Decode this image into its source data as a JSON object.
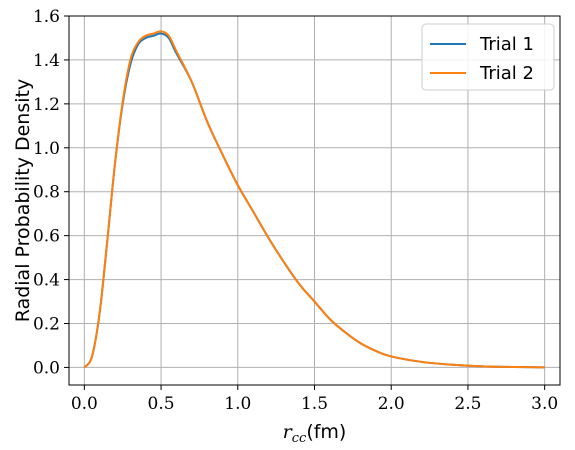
{
  "chart_data": {
    "type": "line",
    "title": "",
    "xlabel": "r_cc(fm)",
    "xlabel_parts": {
      "main": "r",
      "sub": "cc",
      "unit": "(fm)"
    },
    "ylabel": "Radial Probability Density",
    "xlim": [
      -0.1,
      3.1
    ],
    "ylim": [
      -0.08,
      1.6
    ],
    "xticks": [
      0.0,
      0.5,
      1.0,
      1.5,
      2.0,
      2.5,
      3.0
    ],
    "xtick_labels": [
      "0.0",
      "0.5",
      "1.0",
      "1.5",
      "2.0",
      "2.5",
      "3.0"
    ],
    "yticks": [
      0.0,
      0.2,
      0.4,
      0.6,
      0.8,
      1.0,
      1.2,
      1.4,
      1.6
    ],
    "ytick_labels": [
      "0.0",
      "0.2",
      "0.4",
      "0.6",
      "0.8",
      "1.0",
      "1.2",
      "1.4",
      "1.6"
    ],
    "grid": true,
    "legend_position": "top-right",
    "x": [
      0.0,
      0.05,
      0.1,
      0.15,
      0.2,
      0.25,
      0.3,
      0.35,
      0.4,
      0.45,
      0.5,
      0.55,
      0.6,
      0.7,
      0.8,
      0.9,
      1.0,
      1.1,
      1.2,
      1.3,
      1.4,
      1.5,
      1.6,
      1.7,
      1.8,
      1.9,
      2.0,
      2.2,
      2.4,
      2.6,
      2.8,
      3.0
    ],
    "series": [
      {
        "name": "Trial 1",
        "color": "#1f77b4",
        "values": [
          0.0,
          0.05,
          0.25,
          0.58,
          0.93,
          1.2,
          1.38,
          1.47,
          1.5,
          1.51,
          1.52,
          1.5,
          1.43,
          1.3,
          1.12,
          0.97,
          0.83,
          0.71,
          0.59,
          0.48,
          0.38,
          0.3,
          0.22,
          0.16,
          0.11,
          0.075,
          0.05,
          0.025,
          0.012,
          0.005,
          0.002,
          0.0
        ]
      },
      {
        "name": "Trial 2",
        "color": "#ff7f0e",
        "values": [
          0.0,
          0.05,
          0.25,
          0.58,
          0.93,
          1.21,
          1.4,
          1.48,
          1.51,
          1.52,
          1.53,
          1.51,
          1.44,
          1.3,
          1.12,
          0.97,
          0.83,
          0.71,
          0.59,
          0.48,
          0.38,
          0.3,
          0.22,
          0.16,
          0.11,
          0.075,
          0.05,
          0.025,
          0.012,
          0.005,
          0.002,
          0.0
        ]
      }
    ]
  }
}
